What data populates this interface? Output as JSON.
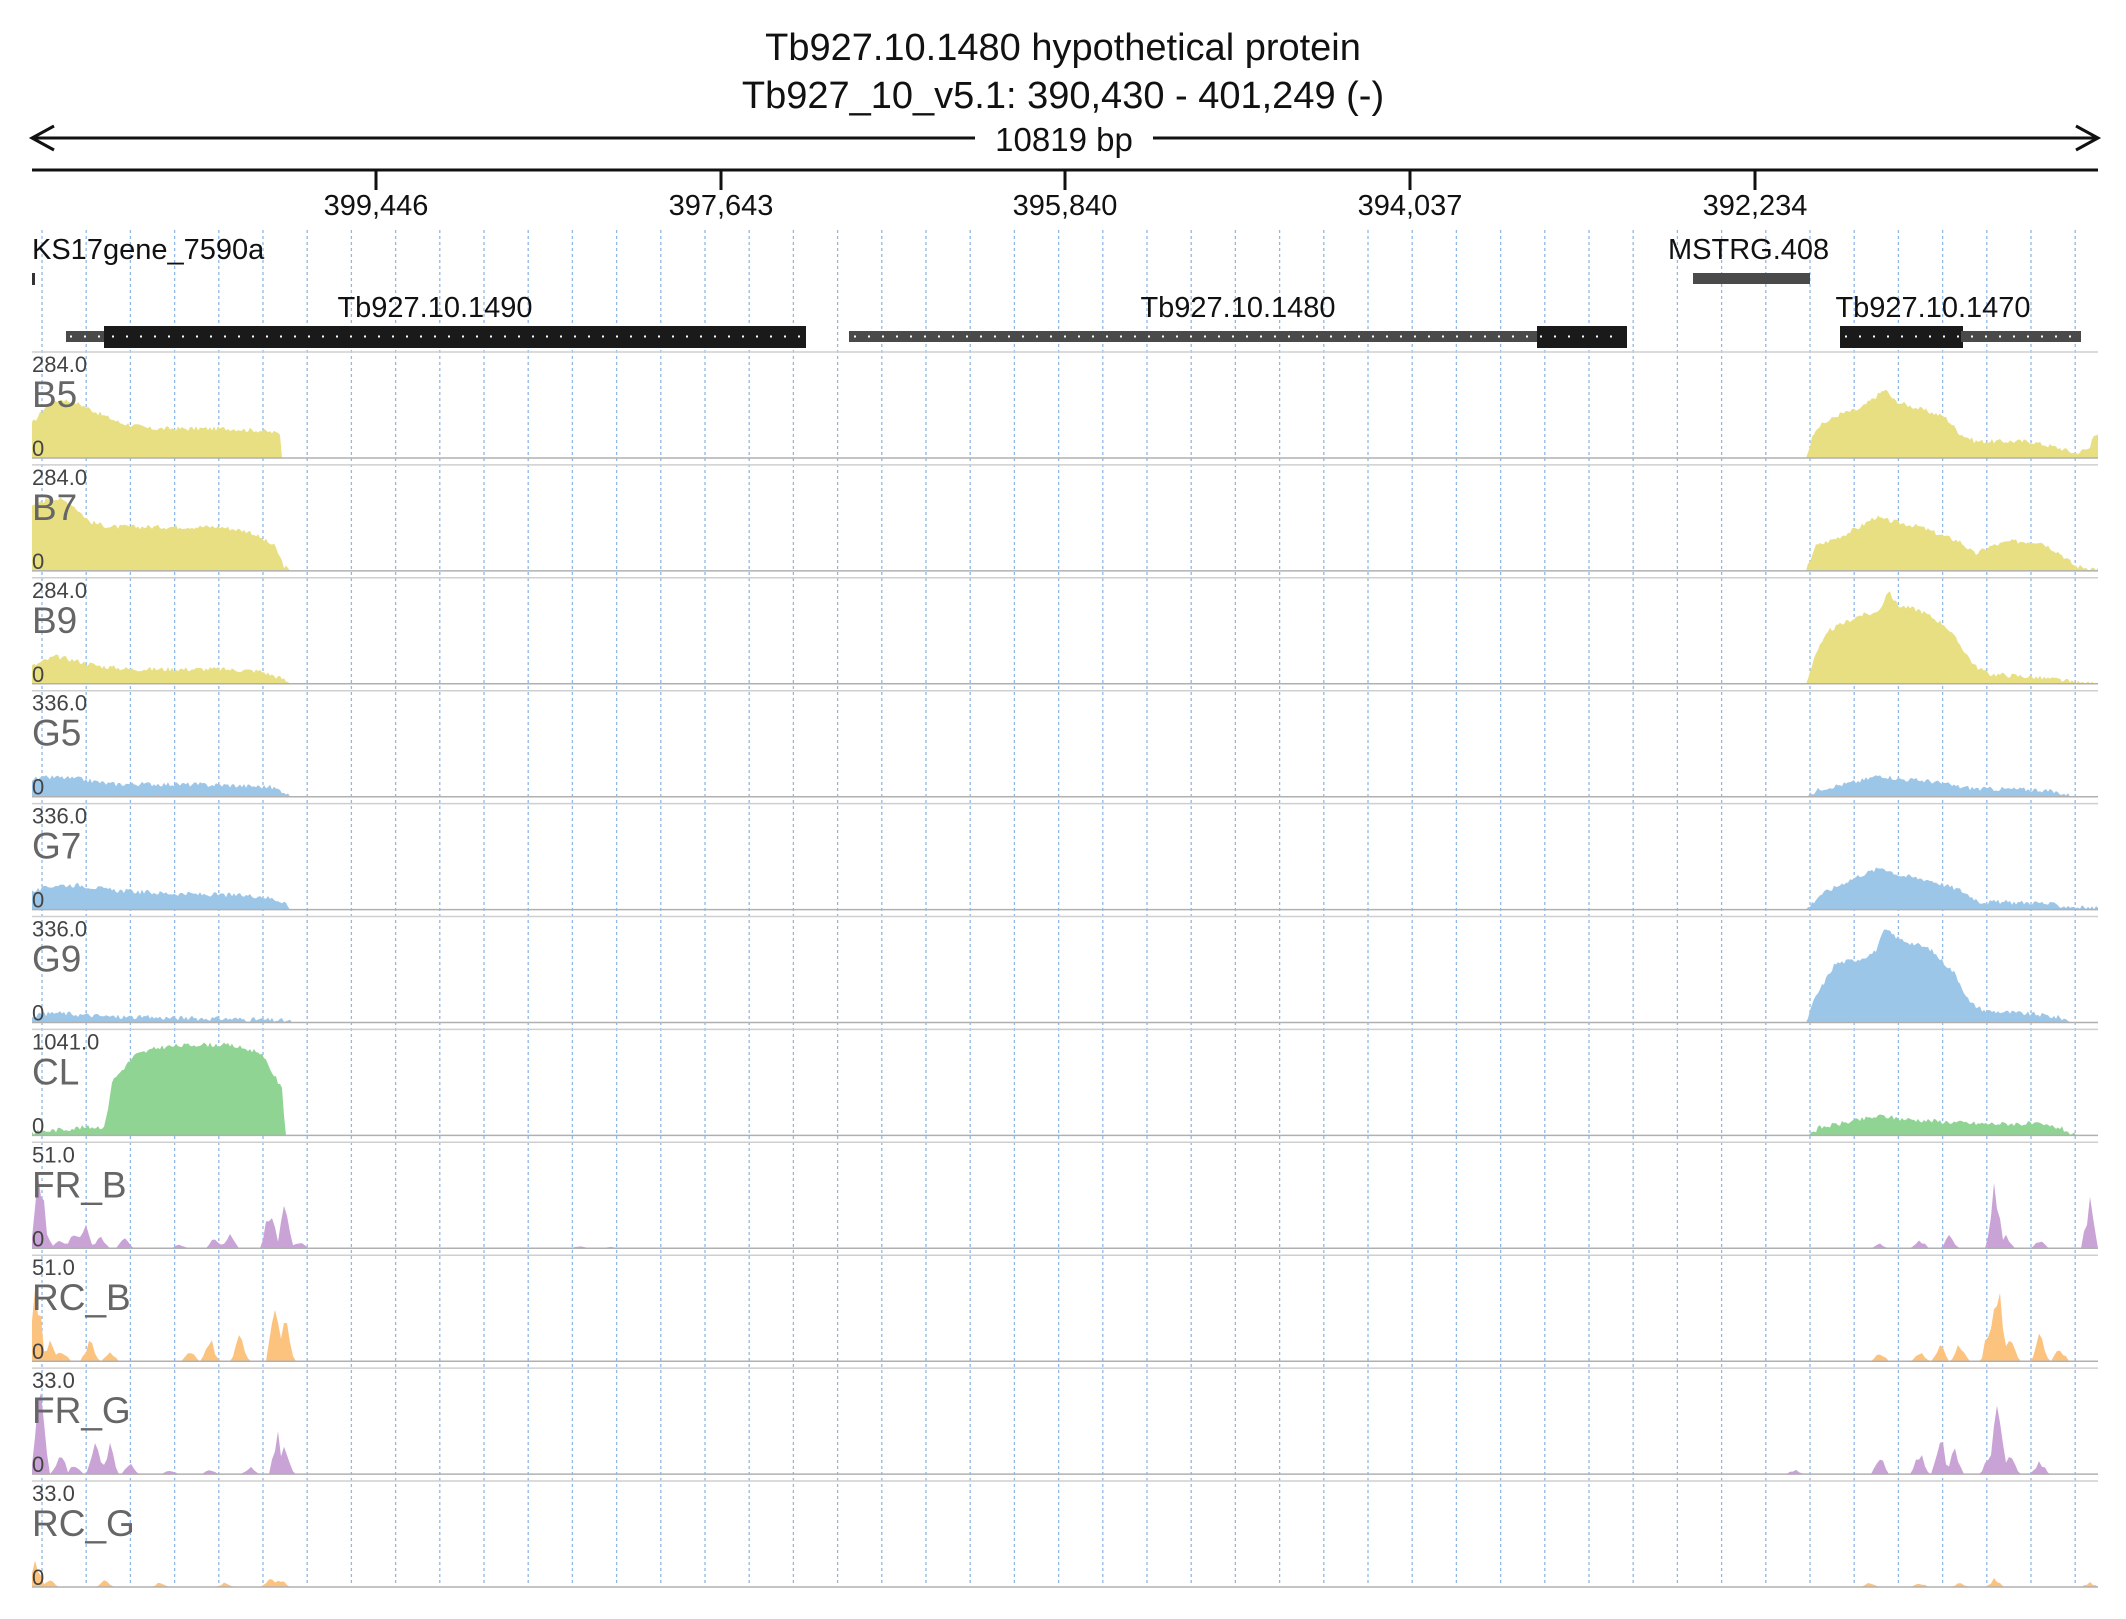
{
  "header": {
    "title": "Tb927.10.1480  hypothetical protein",
    "subtitle": "Tb927_10_v5.1: 390,430 - 401,249 (-)",
    "span_label": "10819 bp"
  },
  "ruler": {
    "ticks": [
      "399,446",
      "397,643",
      "395,840",
      "394,037",
      "392,234"
    ]
  },
  "features": {
    "ks17": "KS17gene_7590a",
    "mstrg": "MSTRG.408",
    "gene_1490": "Tb927.10.1490",
    "gene_1480": "Tb927.10.1480",
    "gene_1470": "Tb927.10.1470"
  },
  "colors": {
    "yellow": "#e8df82",
    "blue": "#9cc6e8",
    "green": "#90d494",
    "purple": "#c9a3d6",
    "orange": "#fcc37f",
    "gene": "#1a1a1a",
    "utr": "#4a4a4a"
  },
  "tracks": [
    {
      "id": "b5",
      "label": "B5",
      "scale": "284.0",
      "zero": "0"
    },
    {
      "id": "b7",
      "label": "B7",
      "scale": "284.0",
      "zero": "0"
    },
    {
      "id": "b9",
      "label": "B9",
      "scale": "284.0",
      "zero": "0"
    },
    {
      "id": "g5",
      "label": "G5",
      "scale": "336.0",
      "zero": "0"
    },
    {
      "id": "g7",
      "label": "G7",
      "scale": "336.0",
      "zero": "0"
    },
    {
      "id": "g9",
      "label": "G9",
      "scale": "336.0",
      "zero": "0"
    },
    {
      "id": "cl",
      "label": "CL",
      "scale": "1041.0",
      "zero": "0"
    },
    {
      "id": "fr-b",
      "label": "FR_B",
      "scale": "51.0",
      "zero": "0"
    },
    {
      "id": "rc-b",
      "label": "RC_B",
      "scale": "51.0",
      "zero": "0"
    },
    {
      "id": "fr-g",
      "label": "FR_G",
      "scale": "33.0",
      "zero": "0"
    },
    {
      "id": "rc-g",
      "label": "RC_G",
      "scale": "33.0",
      "zero": "0"
    }
  ]
}
